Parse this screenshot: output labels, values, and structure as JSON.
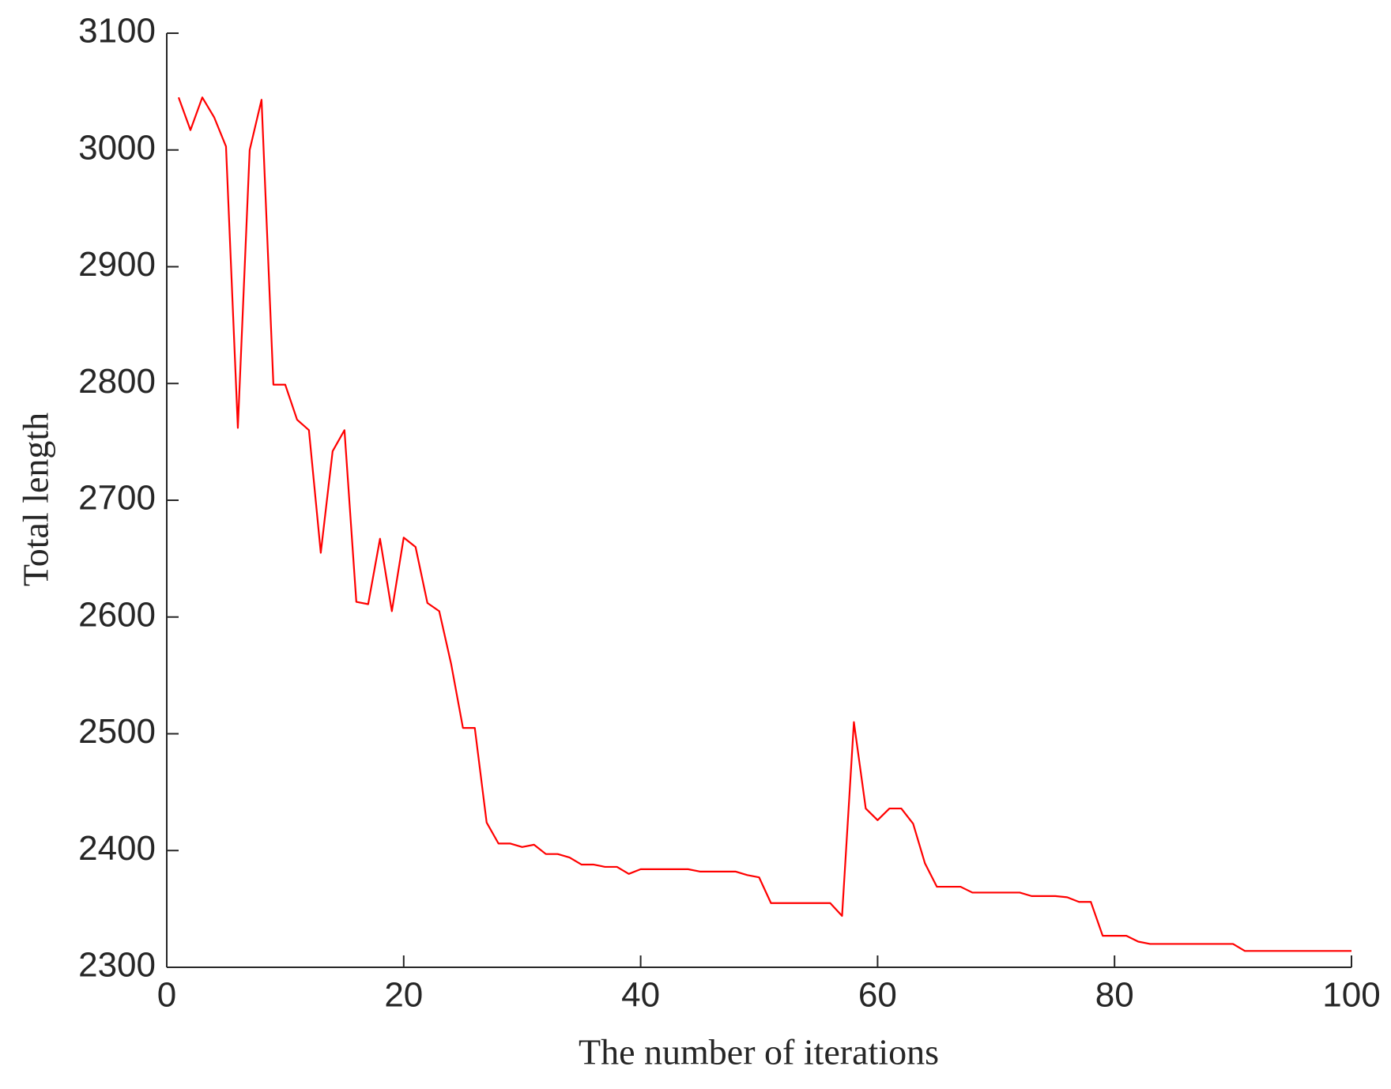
{
  "chart_data": {
    "type": "line",
    "xlabel": "The number of iterations",
    "ylabel": "Total length",
    "x": [
      1,
      2,
      3,
      4,
      5,
      6,
      7,
      8,
      9,
      10,
      11,
      12,
      13,
      14,
      15,
      16,
      17,
      18,
      19,
      20,
      21,
      22,
      23,
      24,
      25,
      26,
      27,
      28,
      29,
      30,
      31,
      32,
      33,
      34,
      35,
      36,
      37,
      38,
      39,
      40,
      41,
      42,
      43,
      44,
      45,
      46,
      47,
      48,
      49,
      50,
      51,
      52,
      53,
      54,
      55,
      56,
      57,
      58,
      59,
      60,
      61,
      62,
      63,
      64,
      65,
      66,
      67,
      68,
      69,
      70,
      71,
      72,
      73,
      74,
      75,
      76,
      77,
      78,
      79,
      80,
      81,
      82,
      83,
      84,
      85,
      86,
      87,
      88,
      89,
      90,
      91,
      92,
      93,
      94,
      95,
      96,
      97,
      98,
      99,
      100
    ],
    "series": [
      {
        "color": "#ff0000",
        "values": [
          3045,
          3017,
          3045,
          3028,
          3003,
          2762,
          3000,
          3043,
          2799,
          2799,
          2769,
          2760,
          2655,
          2742,
          2760,
          2613,
          2611,
          2667,
          2605,
          2668,
          2660,
          2612,
          2605,
          2560,
          2505,
          2505,
          2424,
          2406,
          2406,
          2403,
          2405,
          2397,
          2397,
          2394,
          2388,
          2388,
          2386,
          2386,
          2380,
          2384,
          2384,
          2384,
          2384,
          2384,
          2382,
          2382,
          2382,
          2382,
          2379,
          2377,
          2355,
          2355,
          2355,
          2355,
          2355,
          2355,
          2344,
          2510,
          2436,
          2426,
          2436,
          2436,
          2423,
          2389,
          2369,
          2369,
          2369,
          2364,
          2364,
          2364,
          2364,
          2364,
          2361,
          2361,
          2361,
          2360,
          2356,
          2356,
          2327,
          2327,
          2327,
          2322,
          2320,
          2320,
          2320,
          2320,
          2320,
          2320,
          2320,
          2320,
          2314,
          2314,
          2314,
          2314,
          2314,
          2314,
          2314,
          2314,
          2314,
          2314
        ]
      }
    ],
    "xlim": [
      0,
      100
    ],
    "xticks": [
      0,
      20,
      40,
      60,
      80,
      100
    ],
    "ylim": [
      2300,
      3100
    ],
    "yticks": [
      2300,
      2400,
      2500,
      2600,
      2700,
      2800,
      2900,
      3000,
      3100
    ]
  }
}
